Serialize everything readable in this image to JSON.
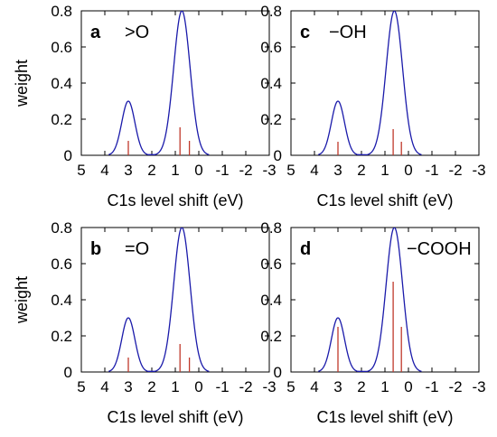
{
  "chart_data": [
    {
      "id": "a",
      "type": "line",
      "panel_letter": "a",
      "group_label": ">O",
      "xlabel": "C1s level shift (eV)",
      "ylabel": "weight",
      "xlim": [
        5,
        -3
      ],
      "ylim": [
        0,
        0.8
      ],
      "x_reversed": true,
      "xticks": [
        5,
        4,
        3,
        2,
        1,
        0,
        -1,
        -2,
        -3
      ],
      "yticks": [
        0,
        0.2,
        0.4,
        0.6,
        0.8
      ],
      "series": [
        {
          "kind": "gaussian-sum",
          "color": "#1a1aaa",
          "peaks": [
            {
              "center": 3.0,
              "amplitude": 0.3,
              "sigma": 0.28
            },
            {
              "center": 0.72,
              "amplitude": 0.8,
              "sigma": 0.35
            }
          ]
        },
        {
          "kind": "sticks",
          "color": "#c0392b",
          "points": [
            {
              "x": 3.0,
              "y": 0.08
            },
            {
              "x": 0.8,
              "y": 0.155
            },
            {
              "x": 0.4,
              "y": 0.08
            }
          ]
        }
      ]
    },
    {
      "id": "c",
      "type": "line",
      "panel_letter": "c",
      "group_label": "−OH",
      "xlabel": "C1s level shift (eV)",
      "ylabel": "",
      "xlim": [
        5,
        -3
      ],
      "ylim": [
        0,
        0.8
      ],
      "x_reversed": true,
      "xticks": [
        5,
        4,
        3,
        2,
        1,
        0,
        -1,
        -2,
        -3
      ],
      "yticks": [
        0,
        0.2,
        0.4,
        0.6,
        0.8
      ],
      "series": [
        {
          "kind": "gaussian-sum",
          "color": "#1a1aaa",
          "peaks": [
            {
              "center": 3.0,
              "amplitude": 0.3,
              "sigma": 0.28
            },
            {
              "center": 0.6,
              "amplitude": 0.8,
              "sigma": 0.35
            }
          ]
        },
        {
          "kind": "sticks",
          "color": "#c0392b",
          "points": [
            {
              "x": 3.0,
              "y": 0.075
            },
            {
              "x": 0.65,
              "y": 0.145
            },
            {
              "x": 0.3,
              "y": 0.075
            }
          ]
        }
      ]
    },
    {
      "id": "b",
      "type": "line",
      "panel_letter": "b",
      "group_label": "=O",
      "xlabel": "C1s level shift (eV)",
      "ylabel": "weight",
      "xlim": [
        5,
        -3
      ],
      "ylim": [
        0,
        0.8
      ],
      "x_reversed": true,
      "xticks": [
        5,
        4,
        3,
        2,
        1,
        0,
        -1,
        -2,
        -3
      ],
      "yticks": [
        0,
        0.2,
        0.4,
        0.6,
        0.8
      ],
      "series": [
        {
          "kind": "gaussian-sum",
          "color": "#1a1aaa",
          "peaks": [
            {
              "center": 3.0,
              "amplitude": 0.3,
              "sigma": 0.28
            },
            {
              "center": 0.72,
              "amplitude": 0.8,
              "sigma": 0.35
            }
          ]
        },
        {
          "kind": "sticks",
          "color": "#c0392b",
          "points": [
            {
              "x": 3.0,
              "y": 0.08
            },
            {
              "x": 0.8,
              "y": 0.155
            },
            {
              "x": 0.4,
              "y": 0.08
            }
          ]
        }
      ]
    },
    {
      "id": "d",
      "type": "line",
      "panel_letter": "d",
      "group_label": "−COOH",
      "xlabel": "C1s level shift (eV)",
      "ylabel": "",
      "xlim": [
        5,
        -3
      ],
      "ylim": [
        0,
        0.8
      ],
      "x_reversed": true,
      "xticks": [
        5,
        4,
        3,
        2,
        1,
        0,
        -1,
        -2,
        -3
      ],
      "yticks": [
        0,
        0.2,
        0.4,
        0.6,
        0.8
      ],
      "series": [
        {
          "kind": "gaussian-sum",
          "color": "#1a1aaa",
          "peaks": [
            {
              "center": 3.0,
              "amplitude": 0.3,
              "sigma": 0.28
            },
            {
              "center": 0.6,
              "amplitude": 0.8,
              "sigma": 0.35
            }
          ]
        },
        {
          "kind": "sticks",
          "color": "#c0392b",
          "points": [
            {
              "x": 3.0,
              "y": 0.25
            },
            {
              "x": 0.65,
              "y": 0.5
            },
            {
              "x": 0.3,
              "y": 0.25
            }
          ]
        }
      ]
    }
  ]
}
